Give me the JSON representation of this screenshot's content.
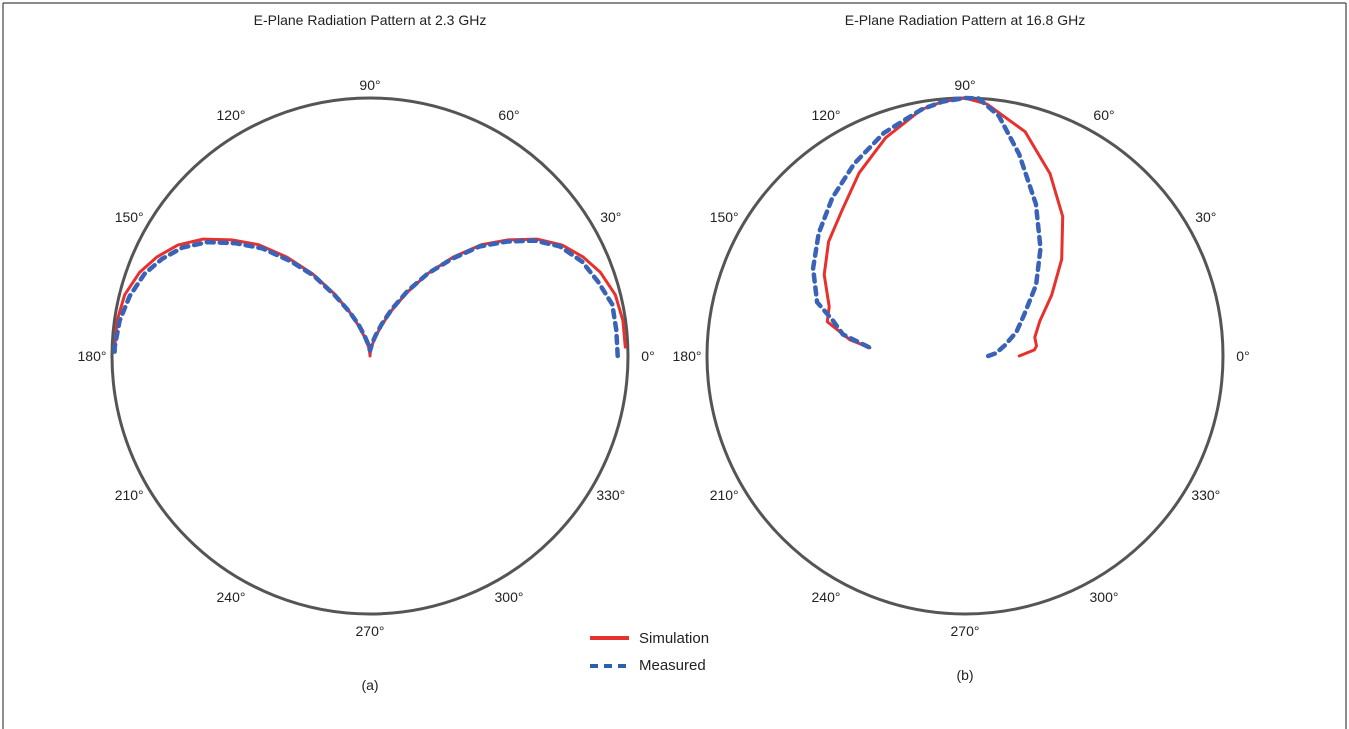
{
  "figure": {
    "legend": [
      {
        "name": "Simulation",
        "color": "#e8302c",
        "style": "solid"
      },
      {
        "name": "Measured",
        "color": "#3a63b8",
        "style": "dashed"
      }
    ]
  },
  "chart_data": [
    {
      "type": "polar-line",
      "title": "E-Plane Radiation Pattern at 2.3 GHz",
      "caption": "(a)",
      "angle_ticks": [
        "0°",
        "30°",
        "60°",
        "90°",
        "120°",
        "150°",
        "180°",
        "210°",
        "240°",
        "270°",
        "300°",
        "330°"
      ],
      "radius_range": [
        0,
        1
      ],
      "grid": false,
      "series": [
        {
          "name": "Simulation",
          "color": "#e8302c",
          "points": [
            [
              2,
              0.99
            ],
            [
              8,
              0.99
            ],
            [
              14,
              0.98
            ],
            [
              20,
              0.95
            ],
            [
              25,
              0.91
            ],
            [
              30,
              0.86
            ],
            [
              35,
              0.79
            ],
            [
              40,
              0.7
            ],
            [
              45,
              0.61
            ],
            [
              50,
              0.5
            ],
            [
              55,
              0.39
            ],
            [
              60,
              0.28
            ],
            [
              65,
              0.19
            ],
            [
              70,
              0.12
            ],
            [
              75,
              0.07
            ],
            [
              80,
              0.04
            ],
            [
              85,
              0.02
            ],
            [
              90,
              0.0
            ],
            [
              95,
              0.02
            ],
            [
              100,
              0.04
            ],
            [
              105,
              0.07
            ],
            [
              110,
              0.12
            ],
            [
              115,
              0.19
            ],
            [
              120,
              0.28
            ],
            [
              125,
              0.39
            ],
            [
              130,
              0.5
            ],
            [
              135,
              0.61
            ],
            [
              140,
              0.7
            ],
            [
              145,
              0.79
            ],
            [
              150,
              0.86
            ],
            [
              155,
              0.91
            ],
            [
              160,
              0.95
            ],
            [
              166,
              0.98
            ],
            [
              172,
              0.99
            ],
            [
              178,
              0.99
            ]
          ]
        },
        {
          "name": "Measured",
          "color": "#3a63b8",
          "points": [
            [
              0,
              0.96
            ],
            [
              6,
              0.96
            ],
            [
              12,
              0.96
            ],
            [
              18,
              0.93
            ],
            [
              24,
              0.9
            ],
            [
              30,
              0.85
            ],
            [
              35,
              0.78
            ],
            [
              40,
              0.69
            ],
            [
              45,
              0.6
            ],
            [
              50,
              0.49
            ],
            [
              55,
              0.39
            ],
            [
              60,
              0.29
            ],
            [
              65,
              0.2
            ],
            [
              70,
              0.13
            ],
            [
              75,
              0.08
            ],
            [
              80,
              0.05
            ],
            [
              85,
              0.03
            ],
            [
              90,
              0.02
            ],
            [
              95,
              0.03
            ],
            [
              100,
              0.05
            ],
            [
              105,
              0.08
            ],
            [
              110,
              0.13
            ],
            [
              115,
              0.19
            ],
            [
              120,
              0.27
            ],
            [
              125,
              0.38
            ],
            [
              130,
              0.48
            ],
            [
              135,
              0.59
            ],
            [
              140,
              0.68
            ],
            [
              145,
              0.77
            ],
            [
              150,
              0.84
            ],
            [
              155,
              0.89
            ],
            [
              160,
              0.93
            ],
            [
              166,
              0.96
            ],
            [
              172,
              0.98
            ],
            [
              178,
              0.99
            ],
            [
              180,
              0.99
            ]
          ]
        }
      ]
    },
    {
      "type": "polar-line",
      "title": "E-Plane Radiation Pattern at 16.8 GHz",
      "caption": "(b)",
      "angle_ticks": [
        "0°",
        "30°",
        "60°",
        "90°",
        "120°",
        "150°",
        "180°",
        "210°",
        "240°",
        "270°",
        "300°",
        "330°"
      ],
      "radius_range": [
        0,
        1
      ],
      "grid": false,
      "series": [
        {
          "name": "Simulation",
          "color": "#e8302c",
          "points": [
            [
              0,
              0.21
            ],
            [
              5,
              0.27
            ],
            [
              8,
              0.28
            ],
            [
              15,
              0.28
            ],
            [
              25,
              0.32
            ],
            [
              35,
              0.41
            ],
            [
              45,
              0.53
            ],
            [
              55,
              0.66
            ],
            [
              65,
              0.78
            ],
            [
              75,
              0.9
            ],
            [
              85,
              0.98
            ],
            [
              90,
              1.0
            ],
            [
              95,
              0.99
            ],
            [
              100,
              0.97
            ],
            [
              110,
              0.9
            ],
            [
              120,
              0.82
            ],
            [
              130,
              0.74
            ],
            [
              140,
              0.69
            ],
            [
              150,
              0.63
            ],
            [
              160,
              0.56
            ],
            [
              166,
              0.55
            ],
            [
              172,
              0.45
            ],
            [
              175,
              0.37
            ]
          ]
        },
        {
          "name": "Measured",
          "color": "#3a63b8",
          "points": [
            [
              0,
              0.09
            ],
            [
              5,
              0.12
            ],
            [
              15,
              0.16
            ],
            [
              25,
              0.22
            ],
            [
              35,
              0.28
            ],
            [
              45,
              0.39
            ],
            [
              55,
              0.51
            ],
            [
              65,
              0.65
            ],
            [
              75,
              0.81
            ],
            [
              82,
              0.94
            ],
            [
              87,
              1.0
            ],
            [
              90,
              1.0
            ],
            [
              95,
              0.99
            ],
            [
              100,
              0.97
            ],
            [
              110,
              0.92
            ],
            [
              120,
              0.86
            ],
            [
              130,
              0.8
            ],
            [
              140,
              0.74
            ],
            [
              150,
              0.68
            ],
            [
              160,
              0.61
            ],
            [
              165,
              0.53
            ],
            [
              170,
              0.48
            ],
            [
              175,
              0.37
            ]
          ]
        }
      ]
    }
  ]
}
